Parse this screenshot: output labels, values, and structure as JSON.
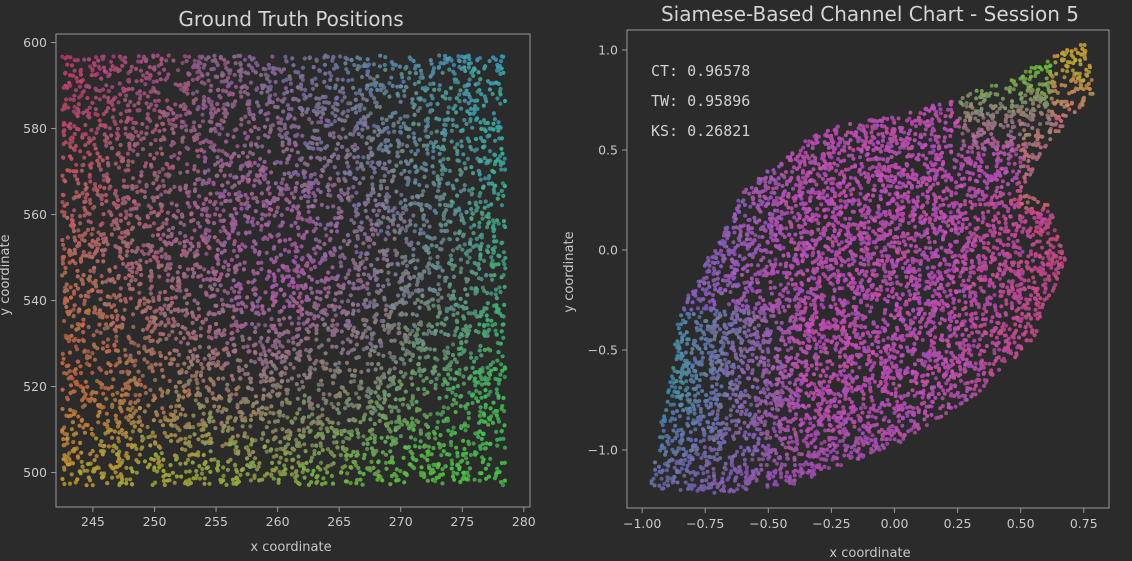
{
  "chart_data": [
    {
      "type": "scatter",
      "title": "Ground Truth Positions",
      "xlabel": "x coordinate",
      "ylabel": "y coordinate",
      "xlim": [
        242,
        280.5
      ],
      "ylim": [
        492,
        602
      ],
      "xticks": [
        245,
        250,
        255,
        260,
        265,
        270,
        275,
        280
      ],
      "yticks": [
        500,
        520,
        540,
        560,
        580,
        600
      ],
      "data_extent": {
        "x": [
          242.5,
          278.5
        ],
        "y": [
          497,
          597
        ]
      },
      "point_count_approx": 6000,
      "color_corners": {
        "top_left": "#c03a78",
        "top_right": "#3aa8b8",
        "bottom_left": "#c8a830",
        "bottom_right": "#40c048",
        "center": "#b848c0",
        "left_mid": "#c04040"
      }
    },
    {
      "type": "scatter",
      "title": "Siamese-Based Channel Chart - Session 5",
      "xlabel": "x coordinate",
      "ylabel": "y coordinate",
      "xlim": [
        -1.06,
        0.85
      ],
      "ylim": [
        -1.29,
        1.1
      ],
      "xtick_labels": [
        "−1.00",
        "−0.75",
        "−0.50",
        "−0.25",
        "0.00",
        "0.25",
        "0.50",
        "0.75"
      ],
      "xticks": [
        -1.0,
        -0.75,
        -0.5,
        -0.25,
        0.0,
        0.25,
        0.5,
        0.75
      ],
      "ytick_labels": [
        "−1.0",
        "−0.5",
        "0.0",
        "0.5",
        "1.0"
      ],
      "yticks": [
        -1.0,
        -0.5,
        0.0,
        0.5,
        1.0
      ],
      "metrics": [
        {
          "label": "CT:",
          "value": "0.96578"
        },
        {
          "label": "TW:",
          "value": "0.95896"
        },
        {
          "label": "KS:",
          "value": "0.26821"
        }
      ],
      "point_count_approx": 6000,
      "shape_outline": [
        [
          -0.97,
          -1.2
        ],
        [
          -0.7,
          -1.22
        ],
        [
          -0.4,
          -1.17
        ],
        [
          0.05,
          -0.95
        ],
        [
          0.35,
          -0.7
        ],
        [
          0.55,
          -0.45
        ],
        [
          0.68,
          -0.05
        ],
        [
          0.62,
          0.22
        ],
        [
          0.5,
          0.3
        ],
        [
          0.62,
          0.55
        ],
        [
          0.8,
          0.8
        ],
        [
          0.75,
          1.05
        ],
        [
          0.45,
          0.85
        ],
        [
          0.1,
          0.7
        ],
        [
          -0.3,
          0.6
        ],
        [
          -0.6,
          0.3
        ],
        [
          -0.85,
          -0.3
        ]
      ]
    }
  ]
}
